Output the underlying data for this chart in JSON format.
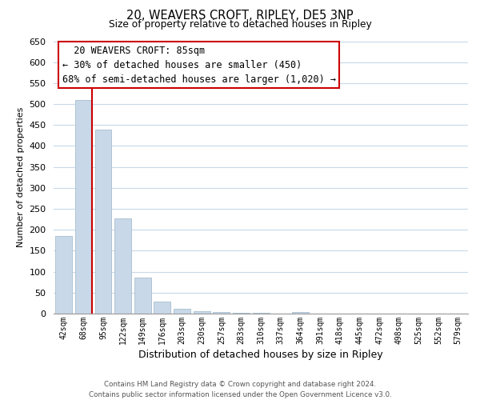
{
  "title": "20, WEAVERS CROFT, RIPLEY, DE5 3NP",
  "subtitle": "Size of property relative to detached houses in Ripley",
  "xlabel": "Distribution of detached houses by size in Ripley",
  "ylabel": "Number of detached properties",
  "bar_labels": [
    "42sqm",
    "68sqm",
    "95sqm",
    "122sqm",
    "149sqm",
    "176sqm",
    "203sqm",
    "230sqm",
    "257sqm",
    "283sqm",
    "310sqm",
    "337sqm",
    "364sqm",
    "391sqm",
    "418sqm",
    "445sqm",
    "472sqm",
    "498sqm",
    "525sqm",
    "552sqm",
    "579sqm"
  ],
  "bar_values": [
    185,
    510,
    440,
    228,
    85,
    28,
    12,
    5,
    3,
    2,
    2,
    1,
    3,
    0,
    0,
    1,
    0,
    0,
    0,
    0,
    1
  ],
  "bar_color": "#c8d8e8",
  "bar_edge_color": "#a8bece",
  "vline_color": "#cc0000",
  "vline_x_index": 2,
  "ylim": [
    0,
    650
  ],
  "yticks": [
    0,
    50,
    100,
    150,
    200,
    250,
    300,
    350,
    400,
    450,
    500,
    550,
    600,
    650
  ],
  "annotation_title": "20 WEAVERS CROFT: 85sqm",
  "annotation_line1": "← 30% of detached houses are smaller (450)",
  "annotation_line2": "68% of semi-detached houses are larger (1,020) →",
  "annotation_box_color": "#ffffff",
  "annotation_box_edge": "#cc0000",
  "footer_line1": "Contains HM Land Registry data © Crown copyright and database right 2024.",
  "footer_line2": "Contains public sector information licensed under the Open Government Licence v3.0.",
  "background_color": "#ffffff",
  "grid_color": "#c8d8e8"
}
